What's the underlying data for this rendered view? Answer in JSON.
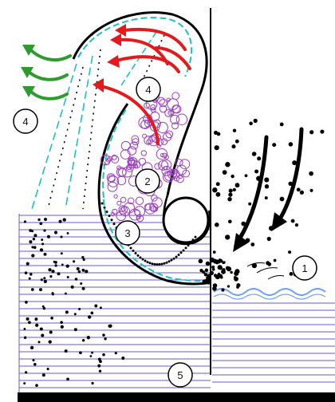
{
  "labels": [
    {
      "id": "l1",
      "text": "1"
    },
    {
      "id": "l2",
      "text": "2"
    },
    {
      "id": "l3",
      "text": "3"
    },
    {
      "id": "l4a",
      "text": "4"
    },
    {
      "id": "l4b",
      "text": "4"
    },
    {
      "id": "l5",
      "text": "5"
    }
  ],
  "colors": {
    "outline": "#000000",
    "water_lines": "#6a5acd",
    "surface_wave": "#6aa0ff",
    "spray": "#1fc0c0",
    "arrows_red": "#e31a1c",
    "arrows_green": "#2e9b2e",
    "bubbles": "#9b3fbf"
  }
}
